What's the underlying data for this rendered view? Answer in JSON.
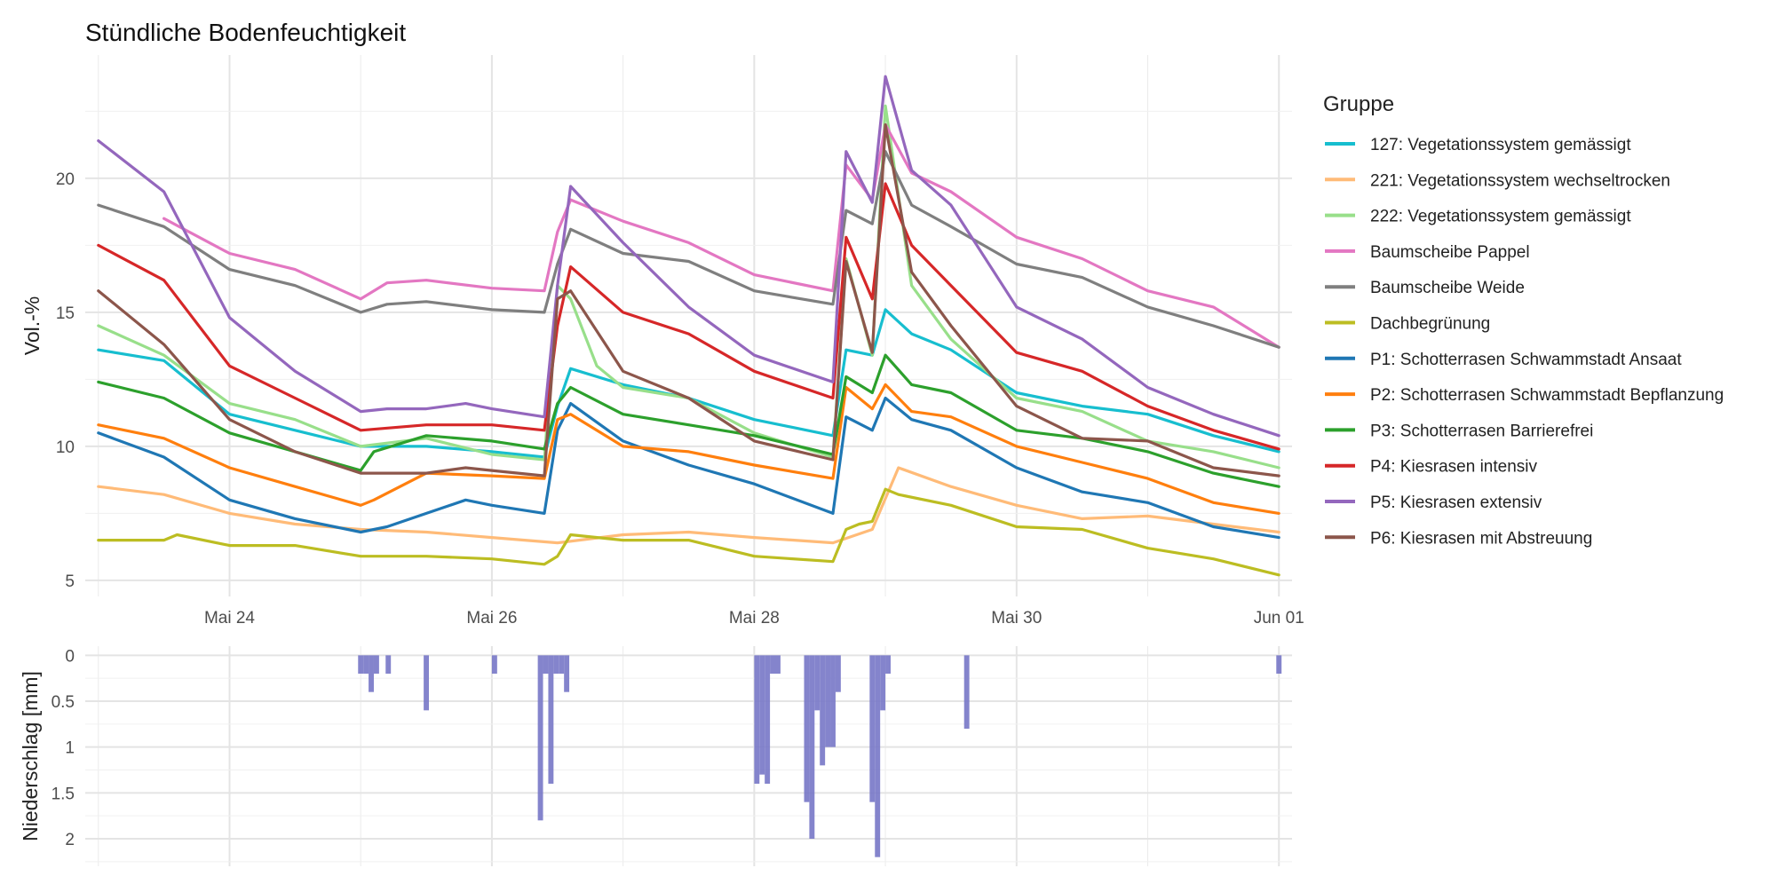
{
  "chart_data": [
    {
      "type": "line",
      "title": "Stündliche Bodenfeuchtigkeit",
      "xlabel": "",
      "ylabel": "Vol.-%",
      "x_ticks": [
        "Mai 24",
        "Mai 26",
        "Mai 28",
        "Mai 30",
        "Jun 01"
      ],
      "x_tick_days": [
        24,
        26,
        28,
        30,
        32
      ],
      "x_range_days": [
        22.9,
        32.1
      ],
      "y_ticks": [
        5,
        10,
        15,
        20
      ],
      "ylim": [
        4.4,
        24.6
      ],
      "grid": true,
      "legend": {
        "title": "Gruppe",
        "placement": "right"
      },
      "series": [
        {
          "name": "127: Vegetationssystem gemässigt",
          "color": "#17becf",
          "x": [
            23.0,
            23.5,
            24.0,
            24.5,
            25.0,
            25.5,
            26.0,
            26.4,
            26.5,
            26.6,
            27.0,
            27.5,
            28.0,
            28.6,
            28.7,
            28.9,
            29.0,
            29.2,
            29.5,
            30.0,
            30.5,
            31.0,
            31.5,
            32.0
          ],
          "y": [
            13.6,
            13.2,
            11.2,
            10.6,
            10.0,
            10.0,
            9.8,
            9.6,
            11.5,
            12.9,
            12.3,
            11.8,
            11.0,
            10.4,
            13.6,
            13.4,
            15.1,
            14.2,
            13.6,
            12.0,
            11.5,
            11.2,
            10.4,
            9.8
          ]
        },
        {
          "name": "221: Vegetationssystem wechseltrocken",
          "color": "#ffbb78",
          "x": [
            23.0,
            23.5,
            24.0,
            24.5,
            25.0,
            25.5,
            26.0,
            26.5,
            27.0,
            27.5,
            28.0,
            28.6,
            28.9,
            29.1,
            29.5,
            30.0,
            30.5,
            31.0,
            31.5,
            32.0
          ],
          "y": [
            8.5,
            8.2,
            7.5,
            7.1,
            6.9,
            6.8,
            6.6,
            6.4,
            6.7,
            6.8,
            6.6,
            6.4,
            6.9,
            9.2,
            8.5,
            7.8,
            7.3,
            7.4,
            7.1,
            6.8
          ]
        },
        {
          "name": "222: Vegetationssystem gemässigt",
          "color": "#98df8a",
          "x": [
            23.0,
            23.5,
            24.0,
            24.5,
            25.0,
            25.5,
            26.0,
            26.4,
            26.5,
            26.6,
            26.8,
            27.0,
            27.5,
            28.0,
            28.6,
            28.7,
            28.9,
            29.0,
            29.2,
            29.5,
            30.0,
            30.5,
            31.0,
            31.5,
            32.0
          ],
          "y": [
            14.5,
            13.4,
            11.6,
            11.0,
            10.0,
            10.3,
            9.7,
            9.5,
            16.0,
            15.5,
            13.0,
            12.2,
            11.8,
            10.5,
            9.6,
            17.0,
            13.4,
            22.7,
            16.0,
            14.0,
            11.8,
            11.3,
            10.2,
            9.8,
            9.2
          ]
        },
        {
          "name": "Baumscheibe Pappel",
          "color": "#e377c2",
          "x": [
            23.5,
            24.0,
            24.5,
            25.0,
            25.2,
            25.5,
            26.0,
            26.4,
            26.5,
            26.6,
            27.0,
            27.5,
            28.0,
            28.6,
            28.7,
            28.9,
            29.0,
            29.2,
            29.5,
            30.0,
            30.5,
            31.0,
            31.5,
            32.0
          ],
          "y": [
            18.5,
            17.2,
            16.6,
            15.5,
            16.1,
            16.2,
            15.9,
            15.8,
            18.0,
            19.2,
            18.4,
            17.6,
            16.4,
            15.8,
            20.5,
            19.2,
            22.0,
            20.2,
            19.5,
            17.8,
            17.0,
            15.8,
            15.2,
            13.7
          ]
        },
        {
          "name": "Baumscheibe Weide",
          "color": "#7f7f7f",
          "x": [
            23.0,
            23.5,
            24.0,
            24.5,
            25.0,
            25.2,
            25.5,
            26.0,
            26.4,
            26.5,
            26.6,
            27.0,
            27.5,
            28.0,
            28.6,
            28.7,
            28.9,
            29.0,
            29.2,
            29.5,
            30.0,
            30.5,
            31.0,
            31.5,
            32.0
          ],
          "y": [
            19.0,
            18.2,
            16.6,
            16.0,
            15.0,
            15.3,
            15.4,
            15.1,
            15.0,
            16.8,
            18.1,
            17.2,
            16.9,
            15.8,
            15.3,
            18.8,
            18.3,
            21.0,
            19.0,
            18.2,
            16.8,
            16.3,
            15.2,
            14.5,
            13.7
          ]
        },
        {
          "name": "Dachbegrünung",
          "color": "#bcbd22",
          "x": [
            23.0,
            23.5,
            23.6,
            24.0,
            24.5,
            25.0,
            25.5,
            26.0,
            26.4,
            26.5,
            26.6,
            27.0,
            27.5,
            28.0,
            28.6,
            28.7,
            28.8,
            28.9,
            29.0,
            29.1,
            29.5,
            30.0,
            30.5,
            31.0,
            31.5,
            32.0
          ],
          "y": [
            6.5,
            6.5,
            6.7,
            6.3,
            6.3,
            5.9,
            5.9,
            5.8,
            5.6,
            5.9,
            6.7,
            6.5,
            6.5,
            5.9,
            5.7,
            6.9,
            7.1,
            7.2,
            8.4,
            8.2,
            7.8,
            7.0,
            6.9,
            6.2,
            5.8,
            5.2
          ]
        },
        {
          "name": "P1: Schotterrasen Schwammstadt Ansaat",
          "color": "#1f77b4",
          "x": [
            23.0,
            23.5,
            24.0,
            24.5,
            25.0,
            25.2,
            25.5,
            25.8,
            26.0,
            26.4,
            26.5,
            26.6,
            27.0,
            27.5,
            28.0,
            28.6,
            28.7,
            28.9,
            29.0,
            29.2,
            29.5,
            30.0,
            30.5,
            31.0,
            31.5,
            32.0
          ],
          "y": [
            10.5,
            9.6,
            8.0,
            7.3,
            6.8,
            7.0,
            7.5,
            8.0,
            7.8,
            7.5,
            10.6,
            11.6,
            10.2,
            9.3,
            8.6,
            7.5,
            11.1,
            10.6,
            11.8,
            11.0,
            10.6,
            9.2,
            8.3,
            7.9,
            7.0,
            6.6
          ]
        },
        {
          "name": "P2: Schotterrasen Schwammstadt Bepflanzung",
          "color": "#ff7f0e",
          "x": [
            23.0,
            23.5,
            24.0,
            24.5,
            25.0,
            25.1,
            25.5,
            26.0,
            26.4,
            26.5,
            26.6,
            27.0,
            27.5,
            28.0,
            28.6,
            28.7,
            28.9,
            29.0,
            29.2,
            29.5,
            30.0,
            30.5,
            31.0,
            31.5,
            32.0
          ],
          "y": [
            10.8,
            10.3,
            9.2,
            8.5,
            7.8,
            8.0,
            9.0,
            8.9,
            8.8,
            11.0,
            11.2,
            10.0,
            9.8,
            9.3,
            8.8,
            12.2,
            11.4,
            12.3,
            11.3,
            11.1,
            10.0,
            9.4,
            8.8,
            7.9,
            7.5
          ]
        },
        {
          "name": "P3: Schotterrasen Barrierefrei",
          "color": "#2ca02c",
          "x": [
            23.0,
            23.5,
            24.0,
            24.5,
            25.0,
            25.1,
            25.5,
            26.0,
            26.4,
            26.5,
            26.6,
            27.0,
            27.5,
            28.0,
            28.6,
            28.7,
            28.9,
            29.0,
            29.2,
            29.5,
            30.0,
            30.5,
            31.0,
            31.5,
            32.0
          ],
          "y": [
            12.4,
            11.8,
            10.5,
            9.8,
            9.1,
            9.8,
            10.4,
            10.2,
            9.9,
            11.6,
            12.2,
            11.2,
            10.8,
            10.4,
            9.7,
            12.6,
            12.0,
            13.4,
            12.3,
            12.0,
            10.6,
            10.3,
            9.8,
            9.0,
            8.5
          ]
        },
        {
          "name": "P4: Kiesrasen intensiv",
          "color": "#d62728",
          "x": [
            23.0,
            23.5,
            24.0,
            24.5,
            25.0,
            25.5,
            26.0,
            26.4,
            26.5,
            26.6,
            27.0,
            27.5,
            28.0,
            28.6,
            28.7,
            28.9,
            29.0,
            29.2,
            29.5,
            30.0,
            30.5,
            31.0,
            31.5,
            32.0
          ],
          "y": [
            17.5,
            16.2,
            13.0,
            11.8,
            10.6,
            10.8,
            10.8,
            10.6,
            14.5,
            16.7,
            15.0,
            14.2,
            12.8,
            11.8,
            17.8,
            15.5,
            19.8,
            17.5,
            16.0,
            13.5,
            12.8,
            11.5,
            10.6,
            9.9
          ]
        },
        {
          "name": "P5: Kiesrasen extensiv",
          "color": "#9467bd",
          "x": [
            23.0,
            23.5,
            24.0,
            24.5,
            25.0,
            25.2,
            25.5,
            25.8,
            26.0,
            26.4,
            26.5,
            26.6,
            27.0,
            27.5,
            28.0,
            28.6,
            28.7,
            28.9,
            29.0,
            29.2,
            29.5,
            30.0,
            30.5,
            31.0,
            31.5,
            32.0
          ],
          "y": [
            21.4,
            19.5,
            14.8,
            12.8,
            11.3,
            11.4,
            11.4,
            11.6,
            11.4,
            11.1,
            16.0,
            19.7,
            17.6,
            15.2,
            13.4,
            12.4,
            21.0,
            19.1,
            23.8,
            20.3,
            19.0,
            15.2,
            14.0,
            12.2,
            11.2,
            10.4
          ]
        },
        {
          "name": "P6: Kiesrasen mit Abstreuung",
          "color": "#8c564b",
          "x": [
            23.0,
            23.5,
            24.0,
            24.5,
            25.0,
            25.5,
            25.8,
            26.0,
            26.4,
            26.5,
            26.6,
            27.0,
            27.5,
            28.0,
            28.6,
            28.7,
            28.9,
            29.0,
            29.2,
            29.5,
            30.0,
            30.5,
            31.0,
            31.5,
            32.0
          ],
          "y": [
            15.8,
            13.8,
            11.0,
            9.8,
            9.0,
            9.0,
            9.2,
            9.1,
            8.9,
            15.5,
            15.8,
            12.8,
            11.8,
            10.2,
            9.5,
            16.9,
            13.5,
            22.0,
            16.5,
            14.5,
            11.5,
            10.3,
            10.2,
            9.2,
            8.9
          ]
        }
      ]
    },
    {
      "type": "bar",
      "xlabel": "",
      "ylabel": "Niederschlag [mm]",
      "y_ticks": [
        "0",
        "0.5",
        "1",
        "1.5",
        "2"
      ],
      "y_tick_values": [
        0,
        0.5,
        1,
        1.5,
        2
      ],
      "ylim": [
        -0.1,
        2.3
      ],
      "y_reversed": true,
      "grid": true,
      "bar_color": "#7777c7",
      "x": [
        25.0,
        25.04,
        25.08,
        25.12,
        25.21,
        25.5,
        26.02,
        26.37,
        26.41,
        26.45,
        26.49,
        26.53,
        26.57,
        28.02,
        28.06,
        28.1,
        28.14,
        28.18,
        28.4,
        28.44,
        28.48,
        28.52,
        28.56,
        28.6,
        28.64,
        28.9,
        28.94,
        28.98,
        29.02,
        29.62,
        32.0
      ],
      "values": [
        0.2,
        0.2,
        0.4,
        0.2,
        0.2,
        0.6,
        0.2,
        1.8,
        0.2,
        1.4,
        0.2,
        0.2,
        0.4,
        1.4,
        1.3,
        1.4,
        0.2,
        0.2,
        1.6,
        2.0,
        0.6,
        1.2,
        1.0,
        1.0,
        0.4,
        1.6,
        2.2,
        0.6,
        0.2,
        0.8,
        0.2
      ]
    }
  ]
}
